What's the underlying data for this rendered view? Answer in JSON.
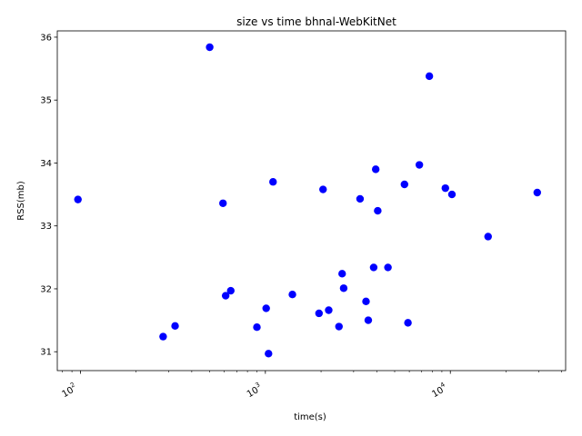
{
  "chart_data": {
    "type": "scatter",
    "title": "size vs time bhnal-WebKitNet",
    "xlabel": "time(s)",
    "ylabel": "RSS(mb)",
    "xscale": "log",
    "xlim": [
      75,
      42000
    ],
    "ylim": [
      30.7,
      36.1
    ],
    "x_ticks": [
      {
        "value": 100,
        "base": "10",
        "exp": "2"
      },
      {
        "value": 1000,
        "base": "10",
        "exp": "3"
      },
      {
        "value": 10000,
        "base": "10",
        "exp": "4"
      }
    ],
    "y_ticks": [
      31,
      32,
      33,
      34,
      35,
      36
    ],
    "grid": false,
    "marker_color": "#0000ff",
    "points": [
      {
        "x": 97,
        "y": 33.42
      },
      {
        "x": 280,
        "y": 31.24
      },
      {
        "x": 325,
        "y": 31.41
      },
      {
        "x": 500,
        "y": 35.84
      },
      {
        "x": 590,
        "y": 33.36
      },
      {
        "x": 610,
        "y": 31.89
      },
      {
        "x": 650,
        "y": 31.97
      },
      {
        "x": 900,
        "y": 31.39
      },
      {
        "x": 1010,
        "y": 31.69
      },
      {
        "x": 1040,
        "y": 30.97
      },
      {
        "x": 1100,
        "y": 33.7
      },
      {
        "x": 1400,
        "y": 31.91
      },
      {
        "x": 1950,
        "y": 31.61
      },
      {
        "x": 2050,
        "y": 33.58
      },
      {
        "x": 2200,
        "y": 31.66
      },
      {
        "x": 2500,
        "y": 31.4
      },
      {
        "x": 2600,
        "y": 32.24
      },
      {
        "x": 2650,
        "y": 32.01
      },
      {
        "x": 3250,
        "y": 33.43
      },
      {
        "x": 3500,
        "y": 31.8
      },
      {
        "x": 3600,
        "y": 31.5
      },
      {
        "x": 3850,
        "y": 32.34
      },
      {
        "x": 3950,
        "y": 33.9
      },
      {
        "x": 4050,
        "y": 33.24
      },
      {
        "x": 4600,
        "y": 32.34
      },
      {
        "x": 5650,
        "y": 33.66
      },
      {
        "x": 5900,
        "y": 31.46
      },
      {
        "x": 6800,
        "y": 33.97
      },
      {
        "x": 7700,
        "y": 35.38
      },
      {
        "x": 9400,
        "y": 33.6
      },
      {
        "x": 10200,
        "y": 33.5
      },
      {
        "x": 16000,
        "y": 32.83
      },
      {
        "x": 29500,
        "y": 33.53
      }
    ]
  }
}
